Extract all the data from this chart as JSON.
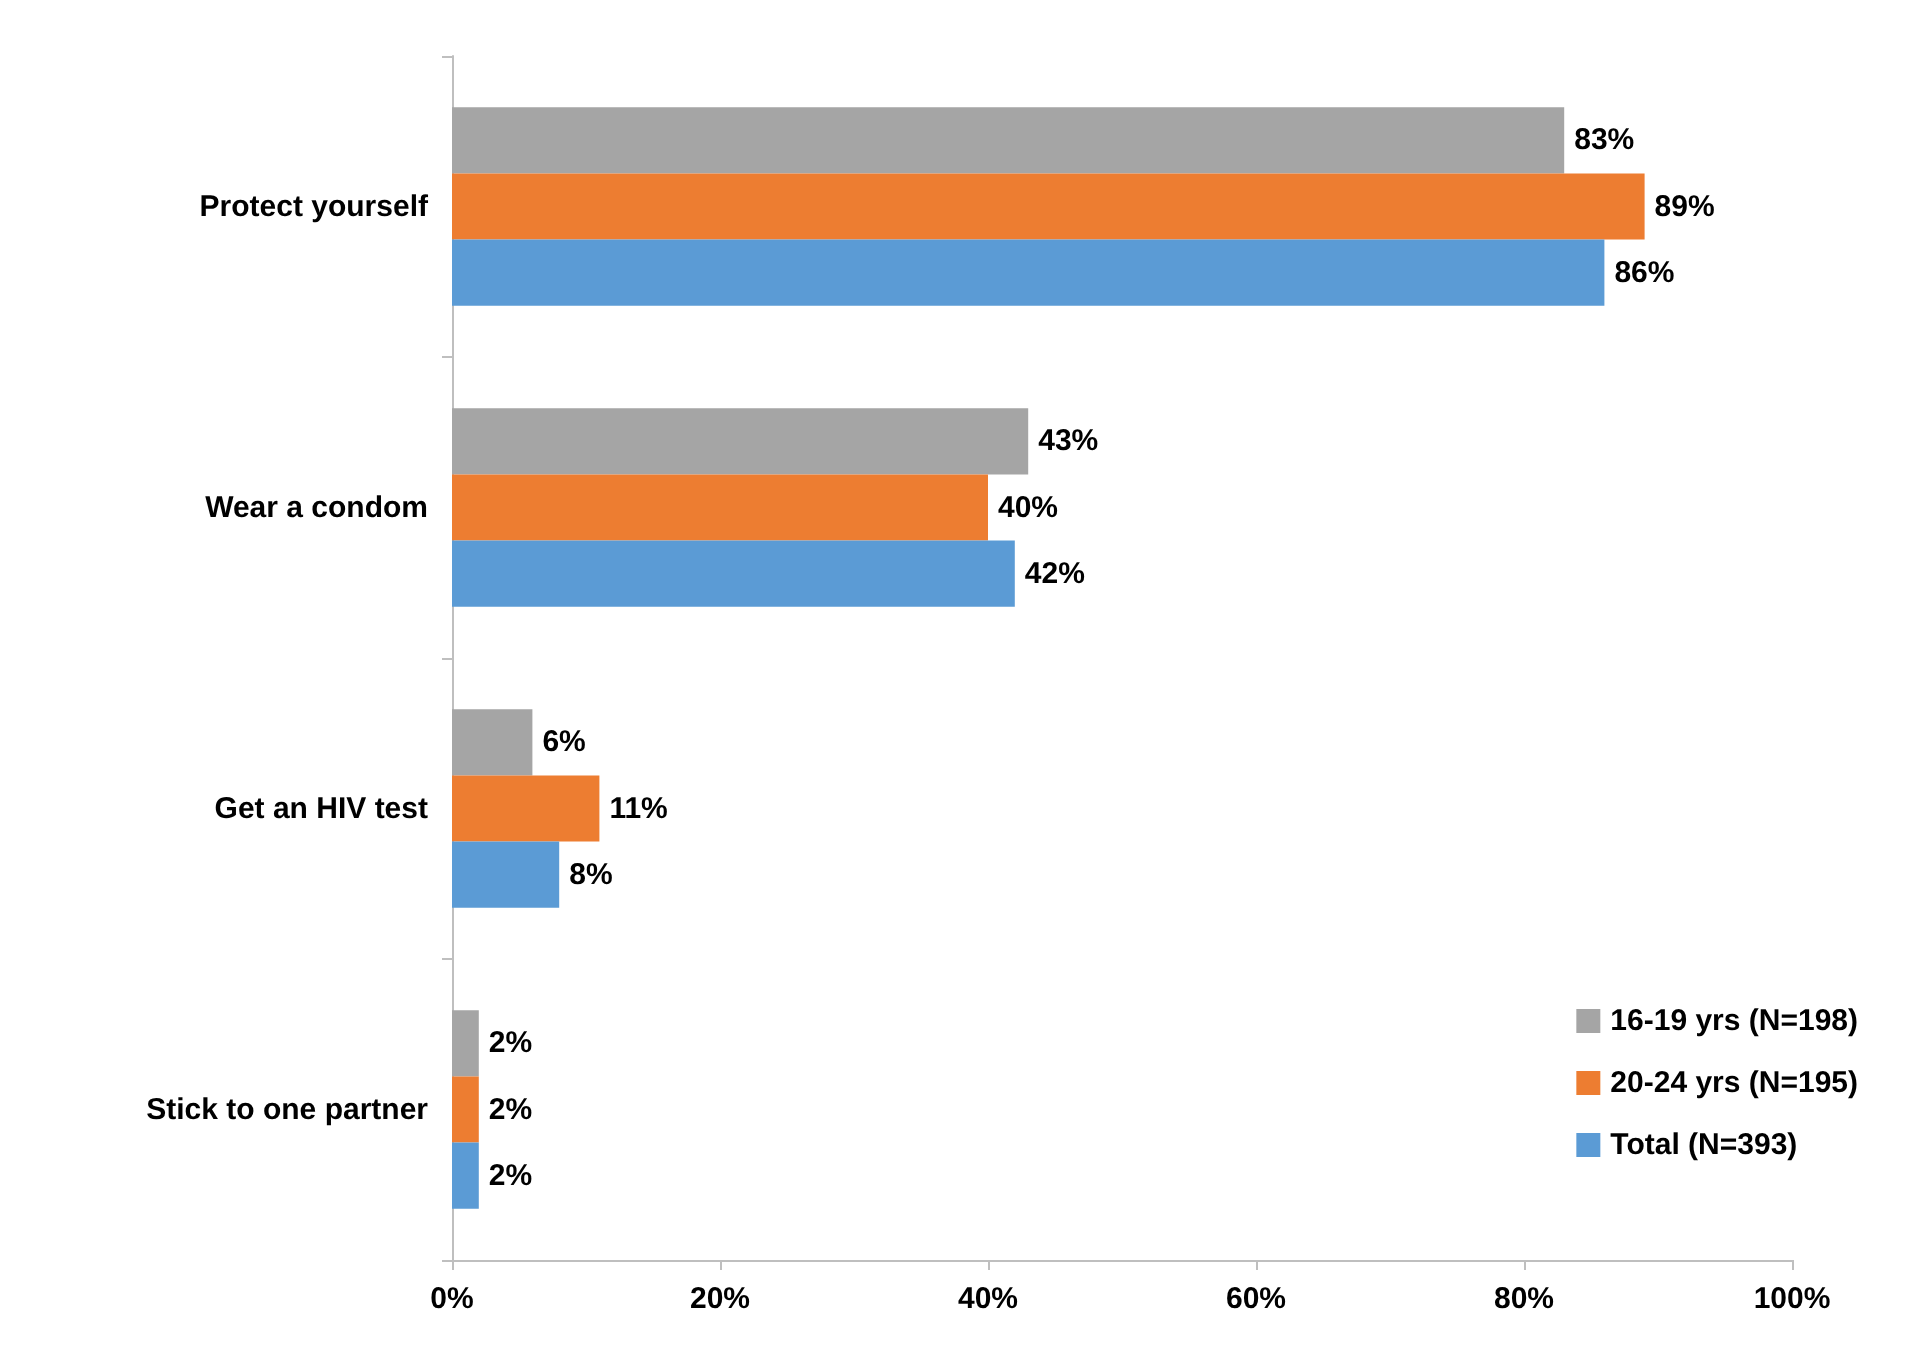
{
  "chart_data": {
    "type": "bar",
    "orientation": "horizontal",
    "categories": [
      "Protect yourself",
      "Wear a condom",
      "Get an HIV test",
      "Stick to one partner"
    ],
    "series": [
      {
        "name": "16-19 yrs (N=198)",
        "color": "#a5a5a5",
        "values": [
          83,
          43,
          6,
          2
        ],
        "value_labels": [
          "83%",
          "43%",
          "6%",
          "2%"
        ]
      },
      {
        "name": "20-24 yrs (N=195)",
        "color": "#ed7d31",
        "values": [
          89,
          40,
          11,
          2
        ],
        "value_labels": [
          "89%",
          "40%",
          "11%",
          "2%"
        ]
      },
      {
        "name": "Total (N=393)",
        "color": "#5b9bd5",
        "values": [
          86,
          42,
          8,
          2
        ],
        "value_labels": [
          "86%",
          "42%",
          "8%",
          "2%"
        ]
      }
    ],
    "xlim": [
      0,
      100
    ],
    "xticks": [
      {
        "value": 0,
        "label": "0%"
      },
      {
        "value": 20,
        "label": "20%"
      },
      {
        "value": 40,
        "label": "40%"
      },
      {
        "value": 60,
        "label": "60%"
      },
      {
        "value": 80,
        "label": "80%"
      },
      {
        "value": 100,
        "label": "100%"
      }
    ],
    "grid": false,
    "legend": "bottom right"
  }
}
